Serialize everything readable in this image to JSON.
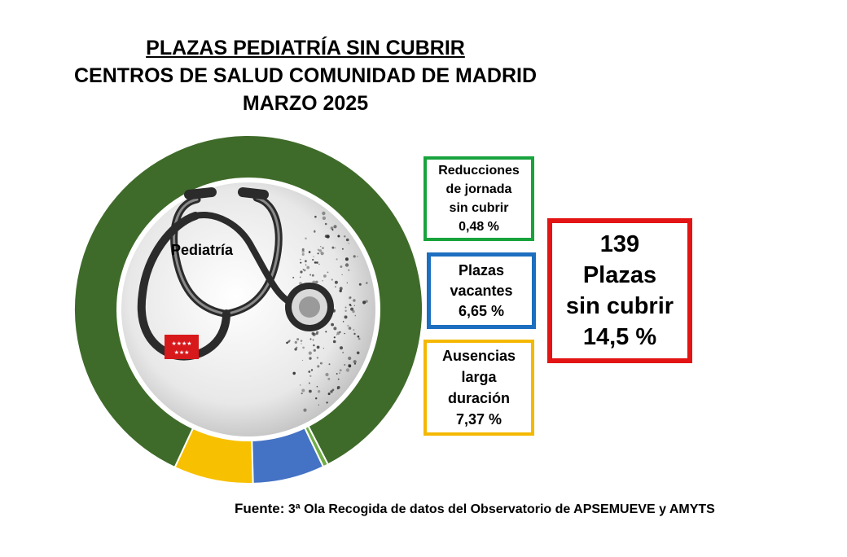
{
  "title": {
    "line1": "PLAZAS PEDIATRÍA SIN CUBRIR",
    "line2": "CENTROS DE SALUD COMUNIDAD DE MADRID",
    "line3": "MARZO 2025"
  },
  "center_label": "Pediatría",
  "boxes": {
    "reducciones": {
      "lines": [
        "Reducciones",
        "de jornada",
        "sin cubrir"
      ],
      "value": "0,48 %"
    },
    "vacantes": {
      "lines": [
        "Plazas",
        "vacantes"
      ],
      "value": "6,65 %"
    },
    "ausencias": {
      "lines": [
        "Ausencias",
        "larga",
        "duración"
      ],
      "value": "7,37 %"
    },
    "total": {
      "lines": [
        "139",
        "Plazas",
        "sin cubrir"
      ],
      "value": "14,5 %"
    }
  },
  "source": {
    "label": "Fuente:",
    "text": "3ª Ola Recogida de datos del Observatorio de APSEMUEVE y AMYTS"
  },
  "chart_data": {
    "type": "pie",
    "title": "PLAZAS PEDIATRÍA SIN CUBRIR",
    "slices": [
      {
        "label": "Ausencias larga duración",
        "value": 7.37,
        "color": "#f7c000"
      },
      {
        "label": "Plazas vacantes",
        "value": 6.65,
        "color": "#4472c4"
      },
      {
        "label": "Reducciones de jornada sin cubrir",
        "value": 0.48,
        "color": "#70ad47"
      },
      {
        "label": "",
        "value": 85.5,
        "color": "#3f6b2a"
      }
    ]
  },
  "colors": {
    "green_dark": "#3f6b2a",
    "blue": "#4472c4",
    "yellow": "#f7c000",
    "green_light": "#70ad47",
    "red_box": "#e31414",
    "green_box": "#18a33c",
    "blue_box": "#1c6fc0",
    "yellow_box": "#f4b800"
  },
  "icons": [
    "stethoscope-icon",
    "madrid-flag-icon"
  ]
}
